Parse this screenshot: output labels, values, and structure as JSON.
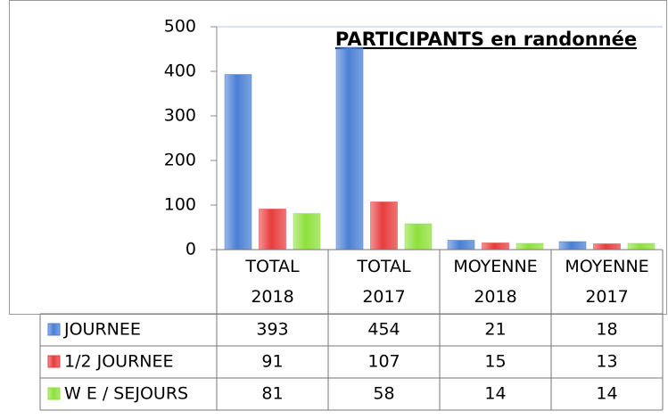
{
  "chart_data": {
    "type": "bar",
    "title": "PARTICIPANTS en randonnée",
    "categories": [
      "TOTAL 2018",
      "TOTAL 2017",
      "MOYENNE 2018",
      "MOYENNE 2017"
    ],
    "series": [
      {
        "name": "JOURNEE",
        "color": "#4a7fd4",
        "values": [
          393,
          454,
          21,
          18
        ]
      },
      {
        "name": "1/2 JOURNEE",
        "color": "#e83c3c",
        "values": [
          91,
          107,
          15,
          13
        ]
      },
      {
        "name": "W E / SEJOURS",
        "color": "#8ee03c",
        "values": [
          81,
          58,
          14,
          14
        ]
      }
    ],
    "ylim": [
      0,
      500
    ],
    "yticks": [
      0,
      100,
      200,
      300,
      400,
      500
    ],
    "grid": false
  }
}
